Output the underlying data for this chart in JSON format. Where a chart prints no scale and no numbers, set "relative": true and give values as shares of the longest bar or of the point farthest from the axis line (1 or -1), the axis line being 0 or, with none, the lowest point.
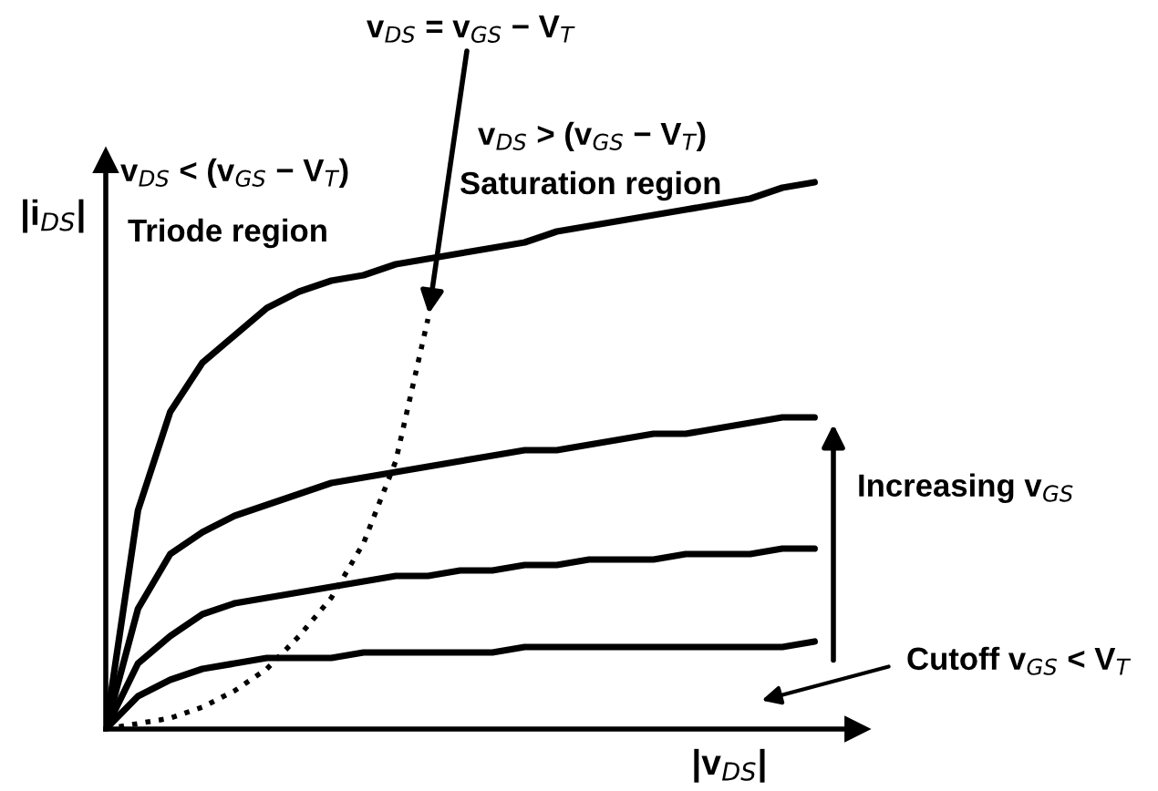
{
  "chart_data": {
    "type": "line",
    "relative": true,
    "xlabel": "|v$_{DS}$|",
    "ylabel": "|i$_{DS}$|",
    "tick_labels": false,
    "marker": "none",
    "line_style": "solid",
    "categories": [
      null,
      null,
      null,
      null,
      null,
      null,
      null,
      null,
      null,
      null,
      null,
      null,
      null,
      null,
      null,
      null,
      null,
      null,
      null,
      null,
      null,
      null,
      null
    ],
    "series": [
      {
        "color": "#000000",
        "values": [
          0,
          0.4,
          0.58,
          0.67,
          0.72,
          0.77,
          0.8,
          0.82,
          0.83,
          0.85,
          0.86,
          0.87,
          0.88,
          0.89,
          0.91,
          0.92,
          0.93,
          0.94,
          0.95,
          0.96,
          0.97,
          0.99,
          1.0
        ]
      },
      {
        "color": "#000000",
        "values": [
          0,
          0.22,
          0.32,
          0.36,
          0.39,
          0.41,
          0.43,
          0.45,
          0.46,
          0.47,
          0.48,
          0.49,
          0.5,
          0.51,
          0.51,
          0.52,
          0.53,
          0.54,
          0.54,
          0.55,
          0.56,
          0.57,
          0.57
        ]
      },
      {
        "color": "#000000",
        "values": [
          0,
          0.12,
          0.17,
          0.21,
          0.23,
          0.24,
          0.25,
          0.26,
          0.27,
          0.28,
          0.28,
          0.29,
          0.29,
          0.3,
          0.3,
          0.31,
          0.31,
          0.31,
          0.32,
          0.32,
          0.32,
          0.33,
          0.33
        ]
      },
      {
        "color": "#000000",
        "values": [
          0,
          0.06,
          0.09,
          0.11,
          0.12,
          0.13,
          0.13,
          0.13,
          0.14,
          0.14,
          0.14,
          0.14,
          0.14,
          0.15,
          0.15,
          0.15,
          0.15,
          0.15,
          0.15,
          0.15,
          0.15,
          0.15,
          0.16
        ]
      },
      {
        "color": "#000000",
        "line_style": "dotted",
        "values": [
          0,
          0.01,
          0.02,
          0.04,
          0.07,
          0.11,
          0.17,
          0.24,
          0.34,
          0.49,
          0.75,
          null,
          null,
          null,
          null,
          null,
          null,
          null,
          null,
          null,
          null,
          null,
          null
        ]
      }
    ],
    "annotations": [
      "v$_{DS}$ = v$_{GS}$ − V$_{T}$",
      "v$_{DS}$ < (v$_{GS}$ − V$_{T}$)",
      "Triode region",
      "v$_{DS}$ > (v$_{GS}$ − V$_{T}$)",
      "Saturation region",
      "Increasing v$_{GS}$",
      "Cutoff v$_{GS}$ < V$_{T}$"
    ]
  }
}
